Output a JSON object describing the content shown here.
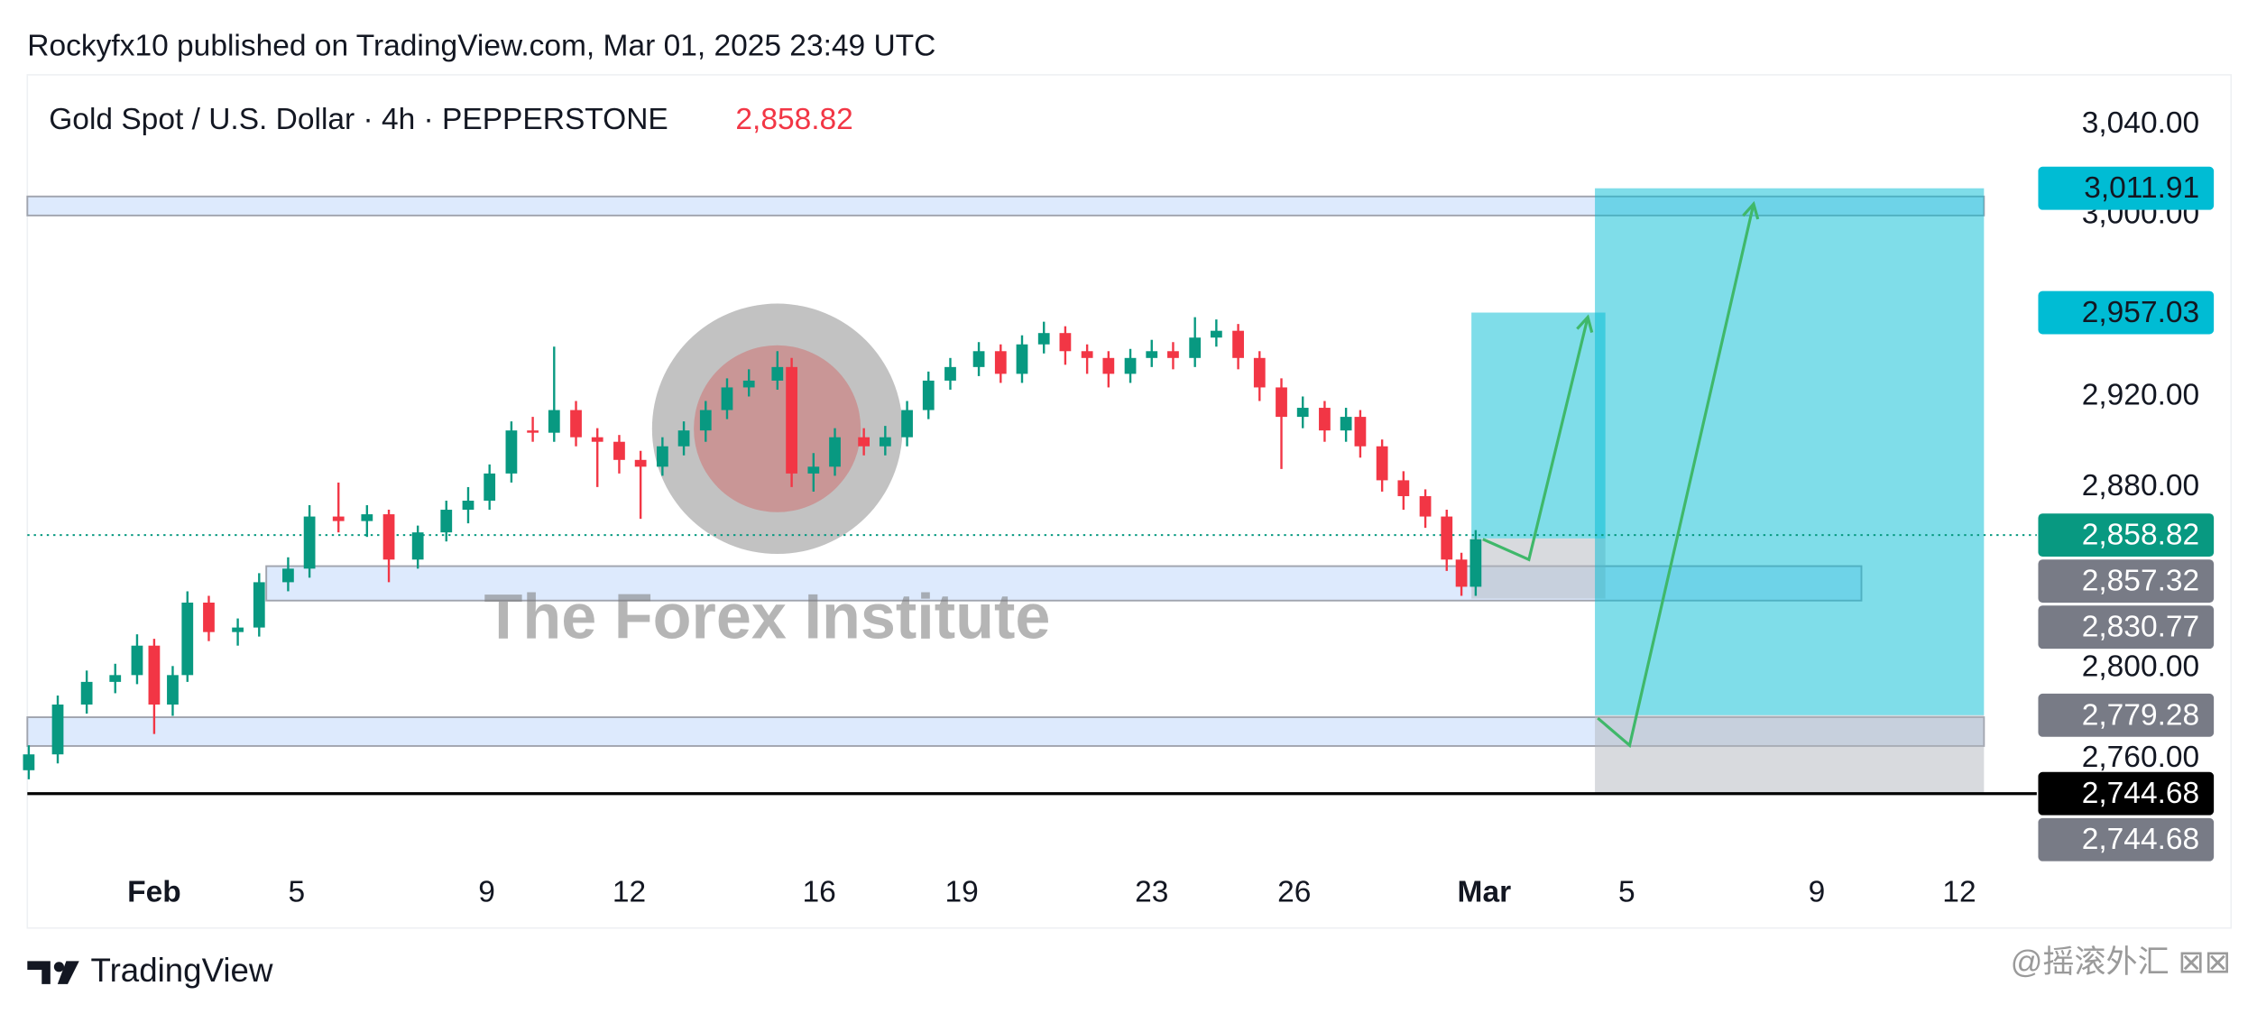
{
  "header": "Rockyfx10 published on TradingView.com, Mar 01, 2025 23:49 UTC",
  "footer": {
    "brand": "TradingView",
    "watermark": "@摇滚外汇 ⊠⊠"
  },
  "chart_data": {
    "type": "candlestick",
    "title": "Gold Spot / U.S. Dollar · 4h · PEPPERSTONE",
    "last_price": {
      "value": 2858.82,
      "label": "2,858.82"
    },
    "watermark": "The Forex Institute",
    "up_color": "#089981",
    "down_color": "#f23645",
    "xlim": [
      -2.67,
      39.48
    ],
    "ylim": [
      2719,
      3062
    ],
    "xticks": [
      {
        "value": 0,
        "label": "Feb"
      },
      {
        "value": 3,
        "label": "5"
      },
      {
        "value": 7,
        "label": "9"
      },
      {
        "value": 10,
        "label": "12"
      },
      {
        "value": 14,
        "label": "16"
      },
      {
        "value": 17,
        "label": "19"
      },
      {
        "value": 21,
        "label": "23"
      },
      {
        "value": 24,
        "label": "26"
      },
      {
        "value": 28,
        "label": "Mar"
      },
      {
        "value": 31,
        "label": "5"
      },
      {
        "value": 35,
        "label": "9"
      },
      {
        "value": 38,
        "label": "12"
      }
    ],
    "yticks": [
      {
        "value": 3040,
        "label": "3,040.00"
      },
      {
        "value": 3000,
        "label": "3,000.00"
      },
      {
        "value": 2920,
        "label": "2,920.00"
      },
      {
        "value": 2880,
        "label": "2,880.00"
      },
      {
        "value": 2800,
        "label": "2,800.00"
      },
      {
        "value": 2760,
        "label": "2,760.00"
      }
    ],
    "x": [
      -2.64,
      -2.03,
      -1.42,
      -0.82,
      -0.36,
      0,
      0.39,
      0.7,
      1.15,
      1.76,
      2.21,
      2.82,
      3.27,
      3.88,
      4.48,
      4.94,
      5.55,
      6.15,
      6.61,
      7.06,
      7.52,
      7.97,
      8.42,
      8.88,
      9.33,
      9.79,
      10.24,
      10.7,
      11.15,
      11.61,
      12.06,
      12.52,
      13.12,
      13.42,
      13.88,
      14.33,
      14.94,
      15.39,
      15.85,
      16.3,
      16.76,
      17.36,
      17.82,
      18.27,
      18.73,
      19.18,
      19.64,
      20.09,
      20.55,
      21.0,
      21.45,
      21.91,
      22.36,
      22.82,
      23.27,
      23.73,
      24.18,
      24.64,
      25.09,
      25.39,
      25.85,
      26.3,
      26.76,
      27.21,
      27.52,
      27.82
    ],
    "ohlc": [
      [
        2755,
        2766,
        2751,
        2762
      ],
      [
        2762,
        2788,
        2758,
        2784
      ],
      [
        2784,
        2799,
        2780,
        2794
      ],
      [
        2794,
        2802,
        2789,
        2797
      ],
      [
        2797,
        2815,
        2793,
        2810
      ],
      [
        2810,
        2813,
        2771,
        2784
      ],
      [
        2784,
        2801,
        2779,
        2797
      ],
      [
        2797,
        2834,
        2794,
        2829
      ],
      [
        2829,
        2832,
        2812,
        2816
      ],
      [
        2816,
        2822,
        2810,
        2818
      ],
      [
        2818,
        2842,
        2814,
        2838
      ],
      [
        2838,
        2849,
        2834,
        2844
      ],
      [
        2844,
        2872,
        2840,
        2867
      ],
      [
        2867,
        2882,
        2860,
        2865
      ],
      [
        2865,
        2872,
        2858,
        2868
      ],
      [
        2868,
        2870,
        2838,
        2848
      ],
      [
        2848,
        2863,
        2844,
        2860
      ],
      [
        2860,
        2874,
        2856,
        2870
      ],
      [
        2870,
        2880,
        2864,
        2874
      ],
      [
        2874,
        2890,
        2870,
        2886
      ],
      [
        2886,
        2909,
        2882,
        2905
      ],
      [
        2905,
        2911,
        2900,
        2904
      ],
      [
        2904,
        2942,
        2900,
        2914
      ],
      [
        2914,
        2918,
        2898,
        2902
      ],
      [
        2902,
        2906,
        2880,
        2900
      ],
      [
        2900,
        2903,
        2886,
        2892
      ],
      [
        2892,
        2896,
        2866,
        2889
      ],
      [
        2889,
        2902,
        2885,
        2898
      ],
      [
        2898,
        2909,
        2894,
        2905
      ],
      [
        2905,
        2918,
        2900,
        2914
      ],
      [
        2914,
        2928,
        2910,
        2924
      ],
      [
        2924,
        2932,
        2920,
        2927
      ],
      [
        2927,
        2940,
        2923,
        2933
      ],
      [
        2933,
        2937,
        2880,
        2886
      ],
      [
        2886,
        2895,
        2878,
        2889
      ],
      [
        2889,
        2906,
        2885,
        2902
      ],
      [
        2902,
        2906,
        2894,
        2898
      ],
      [
        2898,
        2907,
        2894,
        2902
      ],
      [
        2902,
        2918,
        2898,
        2914
      ],
      [
        2914,
        2931,
        2910,
        2927
      ],
      [
        2927,
        2937,
        2923,
        2933
      ],
      [
        2933,
        2944,
        2929,
        2940
      ],
      [
        2940,
        2943,
        2926,
        2930
      ],
      [
        2930,
        2947,
        2926,
        2943
      ],
      [
        2943,
        2953,
        2939,
        2948
      ],
      [
        2948,
        2951,
        2934,
        2940
      ],
      [
        2940,
        2943,
        2930,
        2937
      ],
      [
        2937,
        2940,
        2924,
        2930
      ],
      [
        2930,
        2941,
        2926,
        2937
      ],
      [
        2937,
        2945,
        2933,
        2940
      ],
      [
        2940,
        2944,
        2932,
        2937
      ],
      [
        2937,
        2955,
        2933,
        2946
      ],
      [
        2946,
        2954,
        2942,
        2949
      ],
      [
        2949,
        2952,
        2932,
        2937
      ],
      [
        2937,
        2940,
        2918,
        2924
      ],
      [
        2924,
        2928,
        2888,
        2911
      ],
      [
        2911,
        2920,
        2906,
        2915
      ],
      [
        2915,
        2918,
        2900,
        2905
      ],
      [
        2905,
        2915,
        2900,
        2911
      ],
      [
        2911,
        2914,
        2893,
        2898
      ],
      [
        2898,
        2901,
        2878,
        2883
      ],
      [
        2883,
        2887,
        2870,
        2876
      ],
      [
        2876,
        2879,
        2862,
        2867
      ],
      [
        2867,
        2870,
        2843,
        2848
      ],
      [
        2848,
        2851,
        2832,
        2836
      ],
      [
        2836,
        2861,
        2832,
        2857
      ]
    ],
    "zones": [
      {
        "x": [
          -2.67,
          38.52
        ],
        "y": [
          3008.3,
          2999.9
        ]
      },
      {
        "x": [
          2.36,
          35.94
        ],
        "y": [
          2845.1,
          2829.9
        ]
      },
      {
        "x": [
          -2.67,
          38.52
        ],
        "y": [
          2778.4,
          2765.7
        ]
      }
    ],
    "positions": [
      {
        "x": [
          27.73,
          30.55
        ],
        "entry": 2857.32,
        "target": 2957.03,
        "stop": 2830.77
      },
      {
        "x": [
          30.33,
          38.52
        ],
        "entry": 2779.28,
        "target": 3011.91,
        "stop": 2744.68
      }
    ],
    "projections": [
      {
        "x": [
          27.97,
          28.94,
          30.18
        ],
        "y": [
          2857,
          2848,
          2955
        ]
      },
      {
        "x": [
          30.39,
          31.06,
          33.67
        ],
        "y": [
          2778,
          2766,
          3005
        ]
      }
    ],
    "price_labels": [
      {
        "value": 3011.91,
        "label": "3,011.91",
        "color": "#00bcd4",
        "text_color": "#131722"
      },
      {
        "value": 2957.03,
        "label": "2,957.03",
        "color": "#00bcd4",
        "text_color": "#131722"
      },
      {
        "value": 2858.82,
        "label": "2,858.82",
        "color": "#089981",
        "text_color": "#ffffff"
      },
      {
        "value": 2857.32,
        "label": "2,857.32",
        "color": "#787b86",
        "text_color": "#ffffff"
      },
      {
        "value": 2830.77,
        "label": "2,830.77",
        "color": "#787b86",
        "text_color": "#ffffff"
      },
      {
        "value": 2779.28,
        "label": "2,779.28",
        "color": "#787b86",
        "text_color": "#ffffff"
      },
      {
        "value": 2744.68,
        "label": "2,744.68",
        "color": "#000000",
        "text_color": "#ffffff"
      },
      {
        "value": 2744.68,
        "label": "2,744.68",
        "color": "#787b86",
        "text_color": "#ffffff"
      }
    ]
  }
}
